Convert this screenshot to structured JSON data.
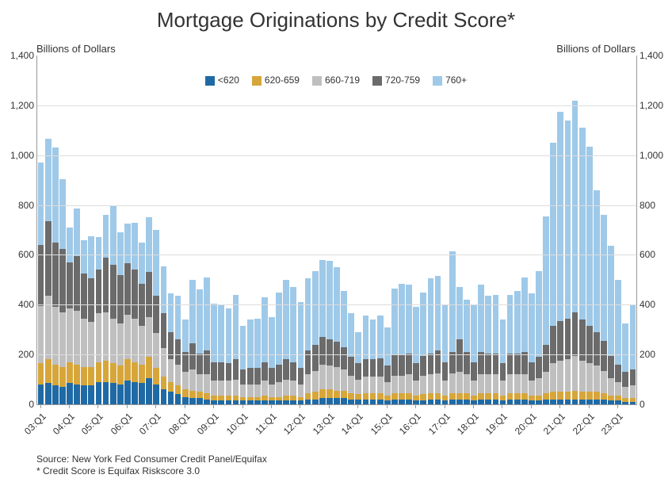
{
  "title": "Mortgage Originations by Credit Score*",
  "title_fontsize": 26,
  "y_axis_label_left": "Billions of Dollars",
  "y_axis_label_right": "Billions of Dollars",
  "axis_label_fontsize": 13,
  "tick_fontsize": 12,
  "source_line1": "Source: New York Fed Consumer Credit Panel/Equifax",
  "source_line2": "* Credit Score is Equifax Riskscore 3.0",
  "source_fontsize": 12,
  "chart": {
    "type": "stacked-bar",
    "ylim": [
      0,
      1400
    ],
    "yticks": [
      0,
      200,
      400,
      600,
      800,
      1000,
      1200,
      1400
    ],
    "grid_color": "#dddddd",
    "background_color": "#ffffff",
    "bar_gap_ratio": 0.15,
    "series": [
      {
        "key": "lt620",
        "label": "<620",
        "color": "#1f6aa5"
      },
      {
        "key": "s620_659",
        "label": "620-659",
        "color": "#d7a63a"
      },
      {
        "key": "s660_719",
        "label": "660-719",
        "color": "#bfbfbf"
      },
      {
        "key": "s720_759",
        "label": "720-759",
        "color": "#6b6b6b"
      },
      {
        "key": "s760p",
        "label": "760+",
        "color": "#9fc9e8"
      }
    ],
    "x_major_labels": [
      "03:Q1",
      "04:Q1",
      "05:Q1",
      "06:Q1",
      "07:Q1",
      "08:Q1",
      "09:Q1",
      "10:Q1",
      "11:Q1",
      "12:Q1",
      "13:Q1",
      "14:Q1",
      "15:Q1",
      "16:Q1",
      "17:Q1",
      "18:Q1",
      "19:Q1",
      "20:Q1",
      "21:Q1",
      "22:Q1",
      "23:Q1"
    ],
    "x_major_every": 4,
    "x_label_rotation": -45,
    "data": [
      {
        "lt620": 80,
        "s620_659": 85,
        "s660_719": 230,
        "s720_759": 245,
        "s760p": 330
      },
      {
        "lt620": 85,
        "s620_659": 95,
        "s660_719": 255,
        "s720_759": 300,
        "s760p": 330
      },
      {
        "lt620": 75,
        "s620_659": 85,
        "s660_719": 230,
        "s720_759": 260,
        "s760p": 380
      },
      {
        "lt620": 70,
        "s620_659": 80,
        "s660_719": 220,
        "s720_759": 255,
        "s760p": 280
      },
      {
        "lt620": 85,
        "s620_659": 85,
        "s660_719": 215,
        "s720_759": 185,
        "s760p": 140
      },
      {
        "lt620": 80,
        "s620_659": 80,
        "s660_719": 215,
        "s720_759": 220,
        "s760p": 190
      },
      {
        "lt620": 75,
        "s620_659": 75,
        "s660_719": 195,
        "s720_759": 180,
        "s760p": 135
      },
      {
        "lt620": 75,
        "s620_659": 75,
        "s660_719": 180,
        "s720_759": 175,
        "s760p": 170
      },
      {
        "lt620": 90,
        "s620_659": 80,
        "s660_719": 195,
        "s720_759": 175,
        "s760p": 130
      },
      {
        "lt620": 90,
        "s620_659": 85,
        "s660_719": 195,
        "s720_759": 220,
        "s760p": 170
      },
      {
        "lt620": 85,
        "s620_659": 80,
        "s660_719": 180,
        "s720_759": 215,
        "s760p": 240
      },
      {
        "lt620": 80,
        "s620_659": 75,
        "s660_719": 170,
        "s720_759": 195,
        "s760p": 170
      },
      {
        "lt620": 95,
        "s620_659": 85,
        "s660_719": 180,
        "s720_759": 205,
        "s760p": 160
      },
      {
        "lt620": 90,
        "s620_659": 80,
        "s660_719": 175,
        "s720_759": 195,
        "s760p": 190
      },
      {
        "lt620": 85,
        "s620_659": 75,
        "s660_719": 155,
        "s720_759": 170,
        "s760p": 165
      },
      {
        "lt620": 105,
        "s620_659": 85,
        "s660_719": 160,
        "s720_759": 180,
        "s760p": 220
      },
      {
        "lt620": 80,
        "s620_659": 65,
        "s660_719": 140,
        "s720_759": 150,
        "s760p": 265
      },
      {
        "lt620": 60,
        "s620_659": 50,
        "s660_719": 115,
        "s720_759": 140,
        "s760p": 190
      },
      {
        "lt620": 50,
        "s620_659": 40,
        "s660_719": 90,
        "s720_759": 110,
        "s760p": 155
      },
      {
        "lt620": 40,
        "s620_659": 35,
        "s660_719": 85,
        "s720_759": 100,
        "s760p": 175
      },
      {
        "lt620": 30,
        "s620_659": 30,
        "s660_719": 70,
        "s720_759": 80,
        "s760p": 130
      },
      {
        "lt620": 25,
        "s620_659": 30,
        "s660_719": 85,
        "s720_759": 105,
        "s760p": 255
      },
      {
        "lt620": 25,
        "s620_659": 25,
        "s660_719": 70,
        "s720_759": 85,
        "s760p": 255
      },
      {
        "lt620": 20,
        "s620_659": 25,
        "s660_719": 75,
        "s720_759": 95,
        "s760p": 295
      },
      {
        "lt620": 15,
        "s620_659": 20,
        "s660_719": 60,
        "s720_759": 75,
        "s760p": 235
      },
      {
        "lt620": 15,
        "s620_659": 20,
        "s660_719": 60,
        "s720_759": 75,
        "s760p": 230
      },
      {
        "lt620": 15,
        "s620_659": 20,
        "s660_719": 60,
        "s720_759": 70,
        "s760p": 220
      },
      {
        "lt620": 15,
        "s620_659": 20,
        "s660_719": 65,
        "s720_759": 80,
        "s760p": 260
      },
      {
        "lt620": 15,
        "s620_659": 15,
        "s660_719": 50,
        "s720_759": 60,
        "s760p": 175
      },
      {
        "lt620": 15,
        "s620_659": 15,
        "s660_719": 50,
        "s720_759": 65,
        "s760p": 195
      },
      {
        "lt620": 15,
        "s620_659": 15,
        "s660_719": 50,
        "s720_759": 65,
        "s760p": 200
      },
      {
        "lt620": 15,
        "s620_659": 20,
        "s660_719": 60,
        "s720_759": 75,
        "s760p": 260
      },
      {
        "lt620": 15,
        "s620_659": 15,
        "s660_719": 50,
        "s720_759": 65,
        "s760p": 205
      },
      {
        "lt620": 15,
        "s620_659": 15,
        "s660_719": 60,
        "s720_759": 70,
        "s760p": 290
      },
      {
        "lt620": 15,
        "s620_659": 20,
        "s660_719": 65,
        "s720_759": 80,
        "s760p": 320
      },
      {
        "lt620": 15,
        "s620_659": 20,
        "s660_719": 60,
        "s720_759": 75,
        "s760p": 300
      },
      {
        "lt620": 15,
        "s620_659": 15,
        "s660_719": 50,
        "s720_759": 65,
        "s760p": 265
      },
      {
        "lt620": 20,
        "s620_659": 25,
        "s660_719": 75,
        "s720_759": 95,
        "s760p": 290
      },
      {
        "lt620": 20,
        "s620_659": 30,
        "s660_719": 85,
        "s720_759": 105,
        "s760p": 295
      },
      {
        "lt620": 25,
        "s620_659": 35,
        "s660_719": 100,
        "s720_759": 110,
        "s760p": 310
      },
      {
        "lt620": 25,
        "s620_659": 35,
        "s660_719": 95,
        "s720_759": 105,
        "s760p": 315
      },
      {
        "lt620": 25,
        "s620_659": 30,
        "s660_719": 95,
        "s720_759": 100,
        "s760p": 300
      },
      {
        "lt620": 25,
        "s620_659": 30,
        "s660_719": 85,
        "s720_759": 90,
        "s760p": 225
      },
      {
        "lt620": 20,
        "s620_659": 25,
        "s660_719": 70,
        "s720_759": 75,
        "s760p": 175
      },
      {
        "lt620": 20,
        "s620_659": 20,
        "s660_719": 60,
        "s720_759": 65,
        "s760p": 125
      },
      {
        "lt620": 20,
        "s620_659": 25,
        "s660_719": 65,
        "s720_759": 70,
        "s760p": 175
      },
      {
        "lt620": 20,
        "s620_659": 25,
        "s660_719": 65,
        "s720_759": 70,
        "s760p": 160
      },
      {
        "lt620": 20,
        "s620_659": 25,
        "s660_719": 65,
        "s720_759": 75,
        "s760p": 170
      },
      {
        "lt620": 15,
        "s620_659": 20,
        "s660_719": 55,
        "s720_759": 65,
        "s760p": 155
      },
      {
        "lt620": 20,
        "s620_659": 25,
        "s660_719": 70,
        "s720_759": 85,
        "s760p": 265
      },
      {
        "lt620": 20,
        "s620_659": 25,
        "s660_719": 70,
        "s720_759": 85,
        "s760p": 285
      },
      {
        "lt620": 20,
        "s620_659": 25,
        "s660_719": 75,
        "s720_759": 85,
        "s760p": 275
      },
      {
        "lt620": 15,
        "s620_659": 20,
        "s660_719": 60,
        "s720_759": 70,
        "s760p": 225
      },
      {
        "lt620": 15,
        "s620_659": 25,
        "s660_719": 75,
        "s720_759": 80,
        "s760p": 255
      },
      {
        "lt620": 20,
        "s620_659": 25,
        "s660_719": 75,
        "s720_759": 85,
        "s760p": 300
      },
      {
        "lt620": 20,
        "s620_659": 25,
        "s660_719": 80,
        "s720_759": 90,
        "s760p": 300
      },
      {
        "lt620": 15,
        "s620_659": 20,
        "s660_719": 60,
        "s720_759": 75,
        "s760p": 230
      },
      {
        "lt620": 20,
        "s620_659": 25,
        "s660_719": 80,
        "s720_759": 85,
        "s760p": 405
      },
      {
        "lt620": 20,
        "s620_659": 25,
        "s660_719": 85,
        "s720_759": 130,
        "s760p": 210
      },
      {
        "lt620": 20,
        "s620_659": 25,
        "s660_719": 75,
        "s720_759": 90,
        "s760p": 210
      },
      {
        "lt620": 15,
        "s620_659": 20,
        "s660_719": 60,
        "s720_759": 75,
        "s760p": 230
      },
      {
        "lt620": 20,
        "s620_659": 25,
        "s660_719": 75,
        "s720_759": 90,
        "s760p": 270
      },
      {
        "lt620": 20,
        "s620_659": 25,
        "s660_719": 75,
        "s720_759": 85,
        "s760p": 230
      },
      {
        "lt620": 20,
        "s620_659": 25,
        "s660_719": 75,
        "s720_759": 85,
        "s760p": 235
      },
      {
        "lt620": 15,
        "s620_659": 20,
        "s660_719": 60,
        "s720_759": 70,
        "s760p": 175
      },
      {
        "lt620": 20,
        "s620_659": 25,
        "s660_719": 75,
        "s720_759": 85,
        "s760p": 235
      },
      {
        "lt620": 20,
        "s620_659": 25,
        "s660_719": 75,
        "s720_759": 85,
        "s760p": 250
      },
      {
        "lt620": 20,
        "s620_659": 25,
        "s660_719": 75,
        "s720_759": 90,
        "s760p": 300
      },
      {
        "lt620": 15,
        "s620_659": 20,
        "s660_719": 60,
        "s720_759": 75,
        "s760p": 275
      },
      {
        "lt620": 15,
        "s620_659": 20,
        "s660_719": 70,
        "s720_759": 85,
        "s760p": 345
      },
      {
        "lt620": 20,
        "s620_659": 25,
        "s660_719": 85,
        "s720_759": 110,
        "s760p": 515
      },
      {
        "lt620": 20,
        "s620_659": 30,
        "s660_719": 115,
        "s720_759": 150,
        "s760p": 735
      },
      {
        "lt620": 20,
        "s620_659": 30,
        "s660_719": 125,
        "s720_759": 160,
        "s760p": 840
      },
      {
        "lt620": 20,
        "s620_659": 30,
        "s660_719": 130,
        "s720_759": 165,
        "s760p": 795
      },
      {
        "lt620": 20,
        "s620_659": 35,
        "s660_719": 140,
        "s720_759": 175,
        "s760p": 850
      },
      {
        "lt620": 20,
        "s620_659": 30,
        "s660_719": 125,
        "s720_759": 165,
        "s760p": 770
      },
      {
        "lt620": 20,
        "s620_659": 30,
        "s660_719": 115,
        "s720_759": 150,
        "s760p": 720
      },
      {
        "lt620": 20,
        "s620_659": 30,
        "s660_719": 105,
        "s720_759": 135,
        "s760p": 570
      },
      {
        "lt620": 20,
        "s620_659": 25,
        "s660_719": 90,
        "s720_759": 120,
        "s760p": 505
      },
      {
        "lt620": 15,
        "s620_659": 20,
        "s660_719": 70,
        "s720_759": 90,
        "s760p": 440
      },
      {
        "lt620": 15,
        "s620_659": 20,
        "s660_719": 55,
        "s720_759": 70,
        "s760p": 340
      },
      {
        "lt620": 10,
        "s620_659": 15,
        "s660_719": 45,
        "s720_759": 60,
        "s760p": 195
      },
      {
        "lt620": 10,
        "s620_659": 15,
        "s660_719": 50,
        "s720_759": 65,
        "s760p": 260
      }
    ]
  }
}
